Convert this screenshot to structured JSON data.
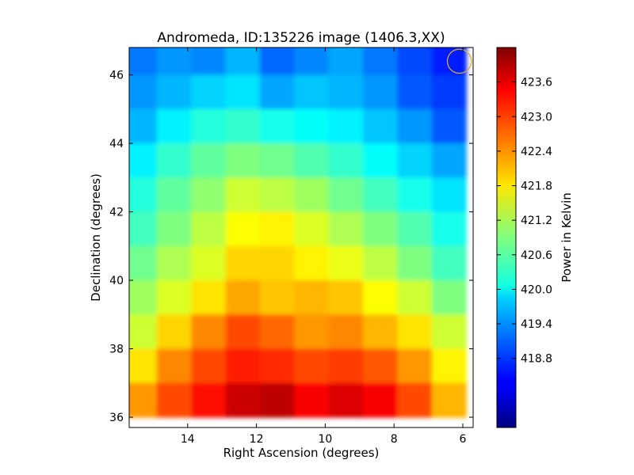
{
  "chart_data": {
    "type": "heatmap",
    "title": "Andromeda, ID:135226 image (1406.3,XX)",
    "xlabel": "Right Ascension (degrees)",
    "ylabel": "Declination (degrees)",
    "xlim": [
      15.7,
      5.7
    ],
    "ylim": [
      35.7,
      46.8
    ],
    "xticks": [
      14,
      12,
      10,
      8,
      6
    ],
    "yticks": [
      36,
      38,
      40,
      42,
      44,
      46
    ],
    "colorbar": {
      "label": "Power in Kelvin",
      "range": [
        417.6,
        424.2
      ],
      "ticks": [
        "418.8",
        "419.4",
        "420.0",
        "420.6",
        "421.2",
        "421.8",
        "422.4",
        "423.0",
        "423.6"
      ],
      "colormap": "jet"
    },
    "ra": [
      15.4,
      14.4,
      13.4,
      12.4,
      11.4,
      10.4,
      9.4,
      8.4,
      7.4,
      6.4
    ],
    "dec": [
      46.5,
      45.5,
      44.5,
      43.5,
      42.5,
      41.5,
      40.5,
      39.5,
      38.5,
      37.5,
      36.5
    ],
    "values": [
      [
        419.2,
        419.4,
        419.3,
        419.6,
        419.1,
        419.3,
        419.5,
        419.2,
        418.9,
        418.6
      ],
      [
        419.4,
        419.6,
        419.8,
        419.9,
        419.5,
        419.7,
        419.6,
        419.4,
        419.0,
        418.8
      ],
      [
        419.6,
        420.0,
        420.3,
        420.4,
        420.2,
        420.1,
        420.0,
        419.7,
        419.4,
        419.0
      ],
      [
        420.0,
        420.4,
        420.7,
        420.9,
        420.8,
        420.6,
        420.4,
        420.1,
        419.8,
        419.5
      ],
      [
        420.3,
        420.7,
        421.0,
        421.4,
        421.3,
        421.1,
        420.8,
        420.5,
        420.2,
        419.9
      ],
      [
        420.5,
        420.9,
        421.3,
        421.7,
        421.8,
        421.5,
        421.2,
        420.9,
        420.6,
        420.2
      ],
      [
        420.8,
        421.2,
        421.5,
        422.0,
        422.0,
        421.8,
        421.6,
        421.3,
        420.9,
        420.5
      ],
      [
        421.1,
        421.5,
        421.9,
        422.3,
        422.1,
        422.2,
        422.1,
        421.7,
        421.4,
        420.9
      ],
      [
        421.4,
        422.0,
        422.5,
        422.9,
        422.7,
        422.4,
        422.5,
        422.2,
        421.9,
        421.4
      ],
      [
        421.9,
        422.5,
        422.9,
        423.2,
        423.1,
        422.9,
        423.0,
        422.8,
        422.4,
        421.8
      ],
      [
        422.4,
        422.9,
        423.3,
        423.7,
        423.8,
        423.4,
        423.6,
        423.4,
        422.9,
        422.2
      ]
    ],
    "marker": {
      "shape": "circle",
      "ra": 6.1,
      "dec": 46.4,
      "radius_deg": 0.35,
      "color": "#d4b020"
    }
  }
}
